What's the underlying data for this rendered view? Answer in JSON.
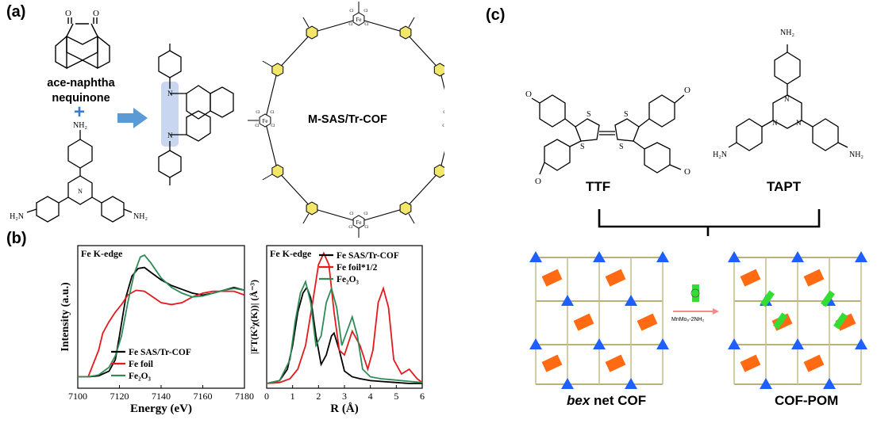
{
  "panels": {
    "a": {
      "label": "(a)",
      "reagent_name": "ace-naphtha nequinone",
      "reagent_name_line1": "ace-naphtha",
      "reagent_name_line2": "nequinone",
      "plus_sign": "+",
      "amine_top": "NH₂",
      "amine_left": "H₂N",
      "amine_right": "NH₂",
      "framework_label": "M-SAS/Tr-COF",
      "fe_symbol": "Fe",
      "cl_symbol": "Cl",
      "n_symbol": "N"
    },
    "b": {
      "label": "(b)",
      "left_plot": {
        "edge_label": "Fe K-edge",
        "ylabel": "Intensity (a.u.)",
        "xlabel": "Energy (eV)",
        "xticks": [
          "7100",
          "7120",
          "7140",
          "7160",
          "7180"
        ],
        "legend": [
          "Fe SAS/Tr-COF",
          "Fe foil",
          "Fe₂O₃"
        ]
      },
      "right_plot": {
        "edge_label": "Fe K-edge",
        "ylabel": "|FT(K²χ(K))| (Å⁻³)",
        "xlabel": "R (Å)",
        "xticks": [
          "0",
          "1",
          "2",
          "3",
          "4",
          "5",
          "6"
        ],
        "legend": [
          "Fe SAS/Tr-COF",
          "Fe foil*1/2",
          "Fe₂O₃"
        ]
      }
    },
    "c": {
      "label": "(c)",
      "monomer1": "TTF",
      "monomer2": "TAPT",
      "amine_label": "NH₂",
      "amine_left": "H₂N",
      "amine_right": "NH₂",
      "aldehyde_o": "O",
      "sulfur": "S",
      "nitrogen": "N",
      "net1_prefix": "bex",
      "net1_suffix": " net COF",
      "net2": "COF-POM",
      "reagent_arrow_label": "MnMo₆-2NH₂"
    }
  },
  "colors": {
    "xas_cof": "#000000",
    "xas_foil": "#e41a1c",
    "xas_fe2o3": "#2e8b57",
    "arrow_blue": "#5b9bd5",
    "triazine_yellow": "#f2e66b",
    "cof_orange": "#ff6a13",
    "cof_blue": "#1f5fff",
    "pom_green": "#33dd33",
    "highlight": "#c9d6ef"
  },
  "chart_data": [
    {
      "type": "line",
      "title": "",
      "annotation": "Fe K-edge",
      "xlabel": "Energy (eV)",
      "ylabel": "Intensity (a.u.)",
      "xlim": [
        7100,
        7180
      ],
      "ylim": [
        0,
        1.5
      ],
      "legend_position": "bottom-center",
      "series": [
        {
          "name": "Fe SAS/Tr-COF",
          "color": "#000000",
          "x": [
            7100,
            7105,
            7110,
            7115,
            7118,
            7120,
            7123,
            7126,
            7129,
            7132,
            7135,
            7140,
            7145,
            7150,
            7155,
            7160,
            7165,
            7170,
            7175,
            7180
          ],
          "y": [
            0.12,
            0.12,
            0.13,
            0.18,
            0.3,
            0.55,
            0.95,
            1.18,
            1.26,
            1.27,
            1.22,
            1.14,
            1.08,
            1.04,
            1.0,
            0.98,
            1.0,
            1.03,
            1.06,
            1.03
          ]
        },
        {
          "name": "Fe foil",
          "color": "#e41a1c",
          "x": [
            7100,
            7105,
            7110,
            7112,
            7115,
            7118,
            7121,
            7124,
            7128,
            7132,
            7136,
            7140,
            7145,
            7150,
            7155,
            7160,
            7165,
            7170,
            7175,
            7180
          ],
          "y": [
            0.12,
            0.12,
            0.4,
            0.58,
            0.7,
            0.8,
            0.88,
            0.98,
            1.03,
            1.02,
            0.96,
            0.9,
            0.88,
            0.9,
            0.96,
            1.0,
            1.02,
            1.02,
            1.02,
            0.98
          ]
        },
        {
          "name": "Fe₂O₃",
          "color": "#2e8b57",
          "x": [
            7100,
            7105,
            7110,
            7115,
            7118,
            7121,
            7124,
            7127,
            7130,
            7132,
            7135,
            7140,
            7145,
            7150,
            7155,
            7160,
            7165,
            7170,
            7175,
            7180
          ],
          "y": [
            0.12,
            0.12,
            0.14,
            0.22,
            0.34,
            0.55,
            0.9,
            1.2,
            1.38,
            1.4,
            1.32,
            1.16,
            1.06,
            1.0,
            0.96,
            0.97,
            1.0,
            1.03,
            1.05,
            1.03
          ]
        }
      ]
    },
    {
      "type": "line",
      "title": "",
      "annotation": "Fe K-edge",
      "xlabel": "R (Å)",
      "ylabel": "|FT(K²χ(K))| (Å⁻³)",
      "xlim": [
        0,
        6
      ],
      "ylim": [
        0,
        1.5
      ],
      "legend_position": "top-right",
      "series": [
        {
          "name": "Fe SAS/Tr-COF",
          "color": "#000000",
          "x": [
            0,
            0.5,
            0.8,
            1.0,
            1.2,
            1.4,
            1.55,
            1.7,
            1.9,
            2.1,
            2.3,
            2.5,
            2.6,
            2.8,
            3.0,
            3.3,
            3.6,
            4.0,
            4.5,
            5.0,
            5.5,
            6.0
          ],
          "y": [
            0.05,
            0.08,
            0.2,
            0.45,
            0.8,
            1.0,
            1.06,
            0.95,
            0.55,
            0.25,
            0.35,
            0.55,
            0.58,
            0.4,
            0.18,
            0.12,
            0.1,
            0.08,
            0.07,
            0.06,
            0.05,
            0.05
          ]
        },
        {
          "name": "Fe foil*1/2",
          "color": "#e41a1c",
          "x": [
            0,
            0.5,
            0.9,
            1.2,
            1.5,
            1.8,
            2.0,
            2.2,
            2.4,
            2.6,
            2.8,
            3.0,
            3.3,
            3.6,
            3.9,
            4.1,
            4.3,
            4.5,
            4.7,
            4.9,
            5.2,
            5.5,
            5.8,
            6.0
          ],
          "y": [
            0.05,
            0.06,
            0.1,
            0.2,
            0.45,
            0.95,
            1.3,
            1.42,
            1.3,
            0.8,
            0.4,
            0.35,
            0.6,
            0.45,
            0.2,
            0.4,
            0.9,
            1.05,
            0.85,
            0.3,
            0.15,
            0.2,
            0.1,
            0.06
          ]
        },
        {
          "name": "Fe₂O₃",
          "color": "#2e8b57",
          "x": [
            0,
            0.5,
            0.9,
            1.1,
            1.3,
            1.5,
            1.7,
            1.9,
            2.1,
            2.3,
            2.5,
            2.7,
            2.9,
            3.1,
            3.3,
            3.5,
            3.7,
            4.0,
            4.4,
            4.8,
            5.2,
            5.6,
            6.0
          ],
          "y": [
            0.05,
            0.08,
            0.3,
            0.7,
            1.0,
            1.12,
            0.9,
            0.45,
            0.55,
            0.9,
            1.05,
            0.85,
            0.45,
            0.6,
            0.75,
            0.55,
            0.2,
            0.12,
            0.1,
            0.09,
            0.08,
            0.07,
            0.06
          ]
        }
      ]
    }
  ]
}
